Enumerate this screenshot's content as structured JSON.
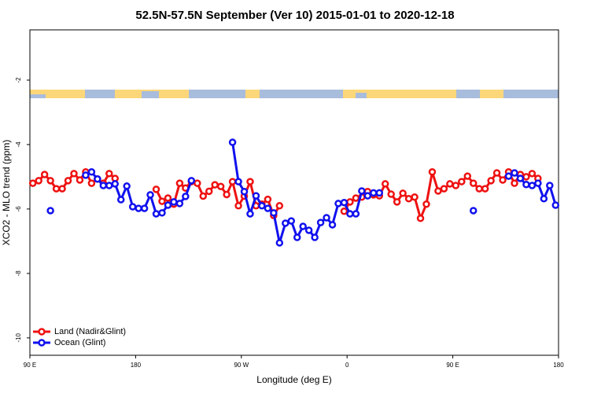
{
  "chart_data": {
    "type": "line",
    "title": "52.5N-57.5N September (Ver 10)   2015-01-01 to 2020-12-18",
    "x_label": "Longitude (deg E)",
    "y_label": "XCO2 - MLO trend (ppm)",
    "xlim": [
      90,
      540
    ],
    "ylim": [
      -10.54,
      -0.44
    ],
    "xticks": [
      {
        "value": 90,
        "label": "90 E"
      },
      180,
      {
        "value": 270,
        "label": "90 W"
      },
      {
        "value": 360,
        "label": "0"
      },
      {
        "value": 450,
        "label": "90 E"
      },
      {
        "value": 540,
        "label": "180"
      }
    ],
    "yticks": [
      -2,
      -4,
      -6,
      -8,
      -10
    ],
    "grid": false,
    "legend": "bottom-left",
    "x": [
      92.5,
      97.5,
      102.5,
      107.5,
      112.5,
      117.5,
      122.5,
      127.5,
      132.5,
      137.5,
      142.5,
      147.5,
      152.5,
      157.5,
      162.5,
      167.5,
      172.5,
      177.5,
      182.5,
      187.5,
      192.5,
      197.5,
      202.5,
      207.5,
      212.5,
      217.5,
      222.5,
      227.5,
      232.5,
      237.5,
      242.5,
      247.5,
      252.5,
      257.5,
      262.5,
      267.5,
      272.5,
      277.5,
      282.5,
      287.5,
      292.5,
      297.5,
      302.5,
      307.5,
      312.5,
      317.5,
      322.5,
      327.5,
      332.5,
      337.5,
      342.5,
      347.5,
      352.5,
      357.5,
      362.5,
      367.5,
      372.5,
      377.5,
      382.5,
      387.5,
      392.5,
      397.5,
      402.5,
      407.5,
      412.5,
      417.5,
      422.5,
      427.5,
      432.5,
      437.5,
      442.5,
      447.5,
      452.5,
      457.5,
      462.5,
      467.5,
      472.5,
      477.5,
      482.5,
      487.5,
      492.5,
      497.5,
      502.5,
      507.5,
      512.5,
      517.5,
      522.5,
      527.5,
      532.5,
      537.5
    ],
    "series": [
      {
        "name": "Land (Nadir&Glint)",
        "color": "#ee1111",
        "values": [
          -5.2,
          -5.12,
          -4.93,
          -5.12,
          -5.37,
          -5.37,
          -5.12,
          -4.9,
          -5.1,
          -4.85,
          -5.2,
          -5.07,
          -5.2,
          -4.9,
          -5.05,
          null,
          null,
          null,
          null,
          null,
          null,
          -5.39,
          -5.76,
          -5.66,
          -5.85,
          -5.2,
          -5.35,
          -5.15,
          -5.2,
          -5.6,
          -5.45,
          -5.25,
          -5.3,
          -5.55,
          -5.15,
          -5.9,
          -5.6,
          -5.15,
          -5.9,
          -5.85,
          -5.7,
          -6.2,
          -5.9,
          null,
          null,
          null,
          null,
          null,
          null,
          null,
          null,
          null,
          null,
          -6.07,
          -5.78,
          -5.66,
          -5.63,
          -5.46,
          -5.56,
          -5.59,
          -5.22,
          -5.54,
          -5.78,
          -5.51,
          -5.68,
          -5.63,
          -6.29,
          -5.85,
          -4.85,
          -5.44,
          -5.37,
          -5.22,
          -5.27,
          -5.15,
          -4.98,
          -5.2,
          -5.37,
          -5.37,
          -5.12,
          -4.88,
          -5.1,
          -4.85,
          -5.2,
          -4.93,
          -5.0,
          -4.9,
          -5.05,
          null,
          null,
          null
        ]
      },
      {
        "name": "Ocean (Glint)",
        "color": "#1111ee",
        "values": [
          null,
          null,
          null,
          -6.05,
          null,
          null,
          null,
          null,
          null,
          -4.95,
          -4.85,
          -5.07,
          -5.27,
          -5.27,
          -5.22,
          -5.71,
          -5.29,
          -5.93,
          -5.98,
          -5.98,
          -5.56,
          -6.15,
          -6.12,
          -5.88,
          -5.78,
          -5.83,
          -5.61,
          -5.12,
          null,
          null,
          null,
          null,
          null,
          null,
          -3.93,
          -5.15,
          -5.46,
          -6.15,
          -5.59,
          -5.9,
          -5.98,
          -6.12,
          -7.05,
          -6.44,
          -6.37,
          -6.88,
          -6.54,
          -6.66,
          -6.88,
          -6.42,
          -6.27,
          -6.49,
          -5.83,
          -5.8,
          -6.15,
          -6.15,
          -5.44,
          -5.59,
          -5.5,
          -5.5,
          null,
          null,
          null,
          null,
          null,
          null,
          null,
          null,
          null,
          null,
          null,
          null,
          null,
          null,
          null,
          -6.05,
          null,
          null,
          null,
          null,
          null,
          -4.98,
          -4.88,
          -5.05,
          -5.24,
          -5.27,
          -5.2,
          -5.68,
          -5.27,
          -5.88
        ]
      }
    ]
  }
}
